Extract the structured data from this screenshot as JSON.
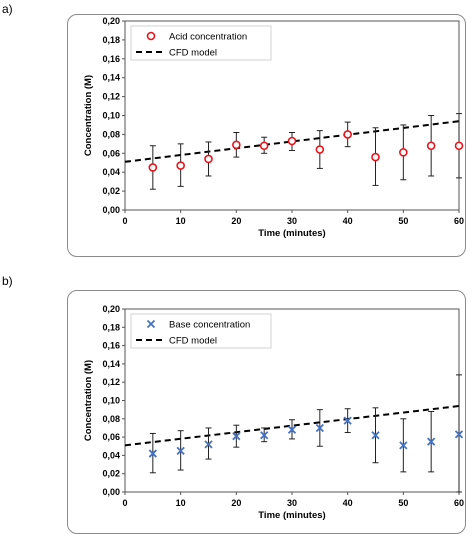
{
  "panels": [
    {
      "label": "a)"
    },
    {
      "label": "b)"
    }
  ],
  "chart_data": [
    {
      "type": "scatter",
      "xlabel": "Time (minutes)",
      "ylabel": "Concentration (M)",
      "xlim": [
        0,
        60
      ],
      "ylim": [
        0,
        0.2
      ],
      "xticks": [
        "0",
        "10",
        "20",
        "30",
        "40",
        "50",
        "60"
      ],
      "yticks": [
        "0,00",
        "0,02",
        "0,04",
        "0,06",
        "0,08",
        "0,10",
        "0,12",
        "0,14",
        "0,16",
        "0,18",
        "0,20"
      ],
      "grid": false,
      "legend_position": "top-left",
      "series": [
        {
          "name": "Acid concentration",
          "marker": "circle",
          "color": "#e8141b",
          "x": [
            5,
            10,
            15,
            20,
            25,
            30,
            35,
            40,
            45,
            50,
            55,
            60
          ],
          "y": [
            0.045,
            0.047,
            0.054,
            0.069,
            0.068,
            0.073,
            0.064,
            0.08,
            0.056,
            0.061,
            0.068,
            0.068
          ],
          "err_low": [
            0.022,
            0.025,
            0.036,
            0.056,
            0.06,
            0.063,
            0.044,
            0.067,
            0.026,
            0.032,
            0.036,
            0.034
          ],
          "err_high": [
            0.068,
            0.07,
            0.072,
            0.082,
            0.077,
            0.082,
            0.084,
            0.093,
            0.087,
            0.09,
            0.1,
            0.102
          ]
        },
        {
          "name": "CFD model",
          "line": "dashed",
          "color": "#000000",
          "x": [
            0,
            60
          ],
          "y": [
            0.051,
            0.094
          ]
        }
      ]
    },
    {
      "type": "scatter",
      "xlabel": "Time (minutes)",
      "ylabel": "Concentration (M)",
      "xlim": [
        0,
        60
      ],
      "ylim": [
        0,
        0.2
      ],
      "xticks": [
        "0",
        "10",
        "20",
        "30",
        "40",
        "50",
        "60"
      ],
      "yticks": [
        "0,00",
        "0,02",
        "0,04",
        "0,06",
        "0,08",
        "0,10",
        "0,12",
        "0,14",
        "0,16",
        "0,18",
        "0,20"
      ],
      "grid": false,
      "legend_position": "top-left",
      "series": [
        {
          "name": "Base concentration",
          "marker": "x",
          "color": "#4472c4",
          "x": [
            5,
            10,
            15,
            20,
            25,
            30,
            35,
            40,
            45,
            50,
            55,
            60
          ],
          "y": [
            0.042,
            0.045,
            0.052,
            0.061,
            0.062,
            0.068,
            0.07,
            0.078,
            0.062,
            0.051,
            0.055,
            0.063
          ],
          "err_low": [
            0.021,
            0.024,
            0.036,
            0.049,
            0.055,
            0.058,
            0.05,
            0.065,
            0.032,
            0.022,
            0.022,
            0.0
          ],
          "err_high": [
            0.064,
            0.067,
            0.07,
            0.073,
            0.07,
            0.079,
            0.09,
            0.091,
            0.092,
            0.08,
            0.088,
            0.128
          ]
        },
        {
          "name": "CFD model",
          "line": "dashed",
          "color": "#000000",
          "x": [
            0,
            60
          ],
          "y": [
            0.051,
            0.094
          ]
        }
      ]
    }
  ]
}
